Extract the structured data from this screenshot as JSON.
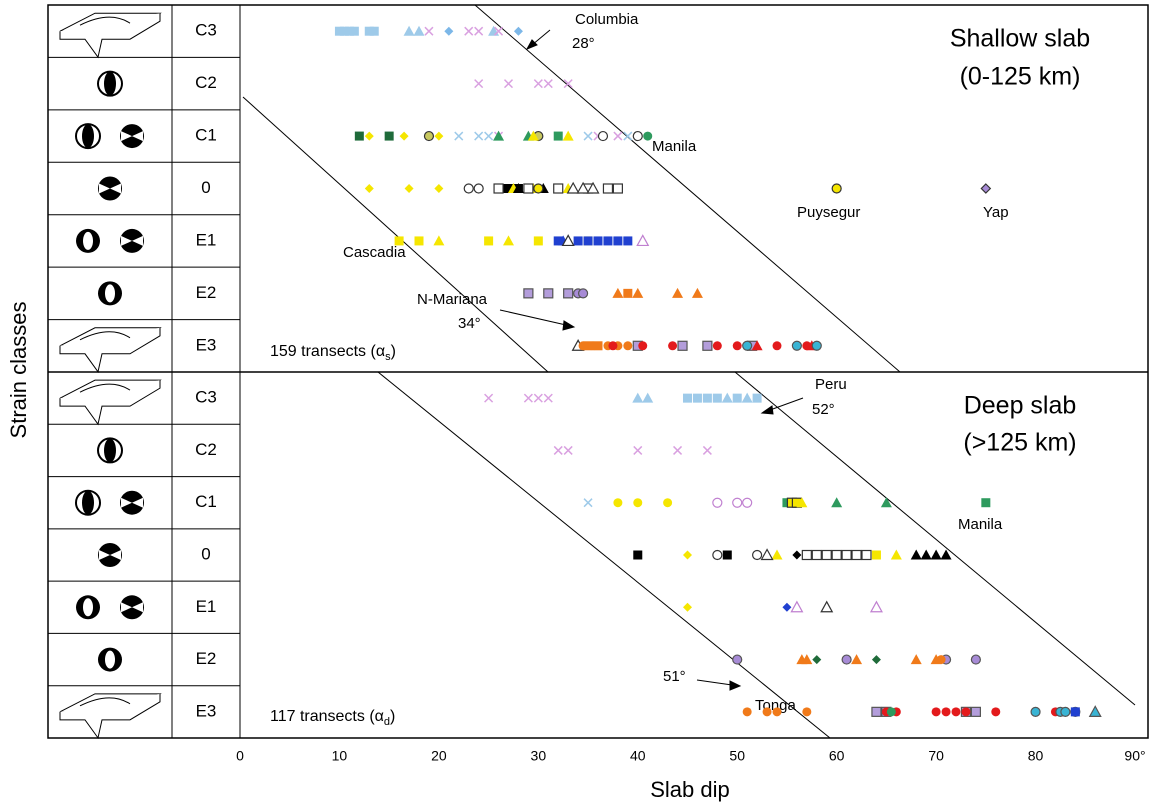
{
  "chart_data": {
    "type": "scatter",
    "xlabel": "Slab dip",
    "ylabel": "Strain classes",
    "xlim": [
      0,
      90
    ],
    "xticks": [
      0,
      10,
      20,
      30,
      40,
      50,
      60,
      70,
      80,
      {
        "value": 90,
        "label": "90°"
      }
    ],
    "panels": [
      {
        "title": [
          "Shallow slab",
          "(0-125 km)"
        ],
        "count": [
          "159 transects (α",
          "s",
          ")"
        ],
        "notes": [
          "Columbia",
          "28°",
          "Manila",
          "Puysegur",
          "Yap",
          "Cascadia",
          "N-Mariana",
          "34°"
        ],
        "rows": [
          {
            "label": "C3",
            "groups": [
              {
                "color": "#9ecae9",
                "shape": "sq",
                "x": [
                  10,
                  10.5,
                  11,
                  11.5,
                  13,
                  13.5
                ]
              },
              {
                "color": "#9ecae9",
                "shape": "tri",
                "x": [
                  17,
                  18,
                  25.5
                ]
              },
              {
                "color": "#d9a0e0",
                "shape": "x",
                "x": [
                  19,
                  23,
                  24,
                  26
                ]
              },
              {
                "color": "#7cb7e8",
                "shape": "dia",
                "x": [
                  21,
                  28
                ]
              }
            ]
          },
          {
            "label": "C2",
            "groups": [
              {
                "color": "#d9a0e0",
                "shape": "x",
                "x": [
                  24,
                  27,
                  30,
                  31,
                  33
                ]
              }
            ]
          },
          {
            "label": "C1",
            "groups": [
              {
                "color": "#1f6b3a",
                "shape": "sq",
                "x": [
                  12,
                  15
                ]
              },
              {
                "color": "#f5e600",
                "shape": "dia",
                "x": [
                  13,
                  16.5,
                  20
                ]
              },
              {
                "color": "#c8c860",
                "shape": "circ",
                "edge": "#333",
                "x": [
                  19,
                  30
                ]
              },
              {
                "color": "#9ecae9",
                "shape": "x",
                "x": [
                  22,
                  24,
                  25,
                  35,
                  39
                ]
              },
              {
                "color": "#d9a0e0",
                "shape": "x",
                "x": [
                  26,
                  36,
                  38
                ]
              },
              {
                "color": "#2e9a5e",
                "shape": "tri",
                "x": [
                  26,
                  29
                ]
              },
              {
                "color": "#f5e600",
                "shape": "tri",
                "x": [
                  29.5,
                  33
                ]
              },
              {
                "color": "#2e9a5e",
                "shape": "sq",
                "x": [
                  32
                ]
              },
              {
                "color": "#fff",
                "shape": "circ",
                "edge": "#333",
                "x": [
                  36.5,
                  40
                ]
              },
              {
                "color": "#2e9a5e",
                "shape": "circ",
                "x": [
                  41
                ]
              }
            ]
          },
          {
            "label": "0",
            "groups": [
              {
                "color": "#f5e600",
                "shape": "dia",
                "x": [
                  13,
                  17,
                  20
                ]
              },
              {
                "color": "#fff",
                "shape": "circ",
                "edge": "#333",
                "x": [
                  23,
                  24
                ]
              },
              {
                "color": "#000",
                "shape": "sq",
                "x": [
                  26.5,
                  27,
                  28
                ]
              },
              {
                "color": "#f5e600",
                "shape": "tri",
                "x": [
                  27.5,
                  29.5,
                  33
                ]
              },
              {
                "color": "#fff",
                "shape": "sq",
                "edge": "#333",
                "x": [
                  26,
                  29,
                  32,
                  35,
                  37,
                  38
                ]
              },
              {
                "color": "#000",
                "shape": "tri",
                "x": [
                  28,
                  30.5
                ]
              },
              {
                "color": "#fff",
                "shape": "tri",
                "edge": "#333",
                "x": [
                  33.5,
                  34.5,
                  35.5
                ]
              },
              {
                "color": "#f5e600",
                "shape": "circ",
                "edge": "#333",
                "x": [
                  30,
                  60
                ]
              },
              {
                "color": "#a78bd6",
                "shape": "dia",
                "edge": "#333",
                "x": [
                  75
                ]
              }
            ]
          },
          {
            "label": "E1",
            "groups": [
              {
                "color": "#f5e600",
                "shape": "sq",
                "x": [
                  16,
                  18,
                  25,
                  30,
                  35
                ]
              },
              {
                "color": "#f5e600",
                "shape": "tri",
                "x": [
                  20,
                  27
                ]
              },
              {
                "color": "#2040d0",
                "shape": "sq",
                "x": [
                  32,
                  34,
                  35,
                  36,
                  37,
                  38,
                  39
                ]
              },
              {
                "color": "#2040d0",
                "shape": "tri",
                "x": [
                  32.5
                ]
              },
              {
                "color": "#fff",
                "shape": "tri",
                "edge": "#333",
                "x": [
                  33
                ]
              },
              {
                "color": "#fff",
                "shape": "tri",
                "edge": "#c080d0",
                "x": [
                  40.5
                ]
              }
            ]
          },
          {
            "label": "E2",
            "groups": [
              {
                "color": "#b39ddb",
                "shape": "sq",
                "edge": "#555",
                "x": [
                  29,
                  31,
                  33
                ]
              },
              {
                "color": "#a78bd6",
                "shape": "circ",
                "edge": "#555",
                "x": [
                  34,
                  34.5
                ]
              },
              {
                "color": "#f07a1a",
                "shape": "tri",
                "x": [
                  38,
                  40,
                  44,
                  46
                ]
              },
              {
                "color": "#f07a1a",
                "shape": "sq",
                "x": [
                  39
                ]
              }
            ]
          },
          {
            "label": "E3",
            "groups": [
              {
                "color": "#fff",
                "shape": "tri",
                "edge": "#333",
                "x": [
                  34
                ]
              },
              {
                "color": "#f07a1a",
                "shape": "circ",
                "x": [
                  34.5,
                  35.5,
                  37,
                  38,
                  39
                ]
              },
              {
                "color": "#f07a1a",
                "shape": "sq",
                "x": [
                  35,
                  36
                ]
              },
              {
                "color": "#b39ddb",
                "shape": "sq",
                "edge": "#555",
                "x": [
                  40,
                  44.5,
                  47,
                  51.5
                ]
              },
              {
                "color": "#e31a1c",
                "shape": "circ",
                "x": [
                  37.5,
                  40.5,
                  43.5,
                  48,
                  50,
                  54,
                  57
                ]
              },
              {
                "color": "#e31a1c",
                "shape": "tri",
                "x": [
                  52,
                  57.5
                ]
              },
              {
                "color": "#39b4d4",
                "shape": "circ",
                "edge": "#555",
                "x": [
                  51,
                  56,
                  58
                ]
              }
            ]
          }
        ]
      },
      {
        "title": [
          "Deep slab",
          "(>125 km)"
        ],
        "count": [
          "117 transects (α",
          "d",
          ")"
        ],
        "notes": [
          "Peru",
          "52°",
          "Manila",
          "51°",
          "Tonga"
        ],
        "rows": [
          {
            "label": "C3",
            "groups": [
              {
                "color": "#d9a0e0",
                "shape": "x",
                "x": [
                  25,
                  29,
                  30,
                  31
                ]
              },
              {
                "color": "#9ecae9",
                "shape": "tri",
                "x": [
                  40,
                  41,
                  49,
                  51
                ]
              },
              {
                "color": "#9ecae9",
                "shape": "sq",
                "x": [
                  45,
                  46,
                  47,
                  48,
                  50,
                  52
                ]
              }
            ]
          },
          {
            "label": "C2",
            "groups": [
              {
                "color": "#d9a0e0",
                "shape": "x",
                "x": [
                  32,
                  33,
                  40,
                  44,
                  47
                ]
              }
            ]
          },
          {
            "label": "C1",
            "groups": [
              {
                "color": "#9ecae9",
                "shape": "x",
                "x": [
                  35
                ]
              },
              {
                "color": "#f5e600",
                "shape": "circ",
                "x": [
                  38,
                  40,
                  43
                ]
              },
              {
                "color": "#fff",
                "shape": "circ",
                "edge": "#c080d0",
                "x": [
                  48,
                  50,
                  51
                ]
              },
              {
                "color": "#2e9a5e",
                "shape": "sq",
                "x": [
                  55,
                  75
                ]
              },
              {
                "color": "#f5e600",
                "shape": "sq",
                "edge": "#333",
                "x": [
                  55.5,
                  56
                ]
              },
              {
                "color": "#f5e600",
                "shape": "tri",
                "x": [
                  56.5
                ]
              },
              {
                "color": "#2e9a5e",
                "shape": "tri",
                "x": [
                  60,
                  65
                ]
              }
            ]
          },
          {
            "label": "0",
            "groups": [
              {
                "color": "#000",
                "shape": "sq",
                "x": [
                  40,
                  49,
                  61.5,
                  62.5
                ]
              },
              {
                "color": "#f5e600",
                "shape": "dia",
                "x": [
                  45
                ]
              },
              {
                "color": "#fff",
                "shape": "circ",
                "edge": "#333",
                "x": [
                  48,
                  52
                ]
              },
              {
                "color": "#f5e600",
                "shape": "tri",
                "x": [
                  54,
                  66
                ]
              },
              {
                "color": "#fff",
                "shape": "tri",
                "edge": "#333",
                "x": [
                  53
                ]
              },
              {
                "color": "#000",
                "shape": "dia",
                "x": [
                  56
                ]
              },
              {
                "color": "#fff",
                "shape": "sq",
                "edge": "#333",
                "x": [
                  57,
                  58,
                  59,
                  60,
                  61,
                  62,
                  63
                ]
              },
              {
                "color": "#000",
                "shape": "tri",
                "x": [
                  68,
                  69,
                  70,
                  71
                ]
              },
              {
                "color": "#f5e600",
                "shape": "sq",
                "x": [
                  64
                ]
              }
            ]
          },
          {
            "label": "E1",
            "groups": [
              {
                "color": "#f5e600",
                "shape": "dia",
                "x": [
                  45
                ]
              },
              {
                "color": "#2040d0",
                "shape": "dia",
                "x": [
                  55
                ]
              },
              {
                "color": "#fff",
                "shape": "tri",
                "edge": "#c080d0",
                "x": [
                  56,
                  64
                ]
              },
              {
                "color": "#fff",
                "shape": "tri",
                "edge": "#333",
                "x": [
                  59
                ]
              }
            ]
          },
          {
            "label": "E2",
            "groups": [
              {
                "color": "#a78bd6",
                "shape": "circ",
                "edge": "#555",
                "x": [
                  50,
                  61,
                  71,
                  74
                ]
              },
              {
                "color": "#f07a1a",
                "shape": "tri",
                "x": [
                  56.5,
                  57,
                  62,
                  68,
                  70
                ]
              },
              {
                "color": "#1f6b3a",
                "shape": "dia",
                "x": [
                  58,
                  64
                ]
              },
              {
                "color": "#f07a1a",
                "shape": "circ",
                "x": [
                  70.5
                ]
              }
            ]
          },
          {
            "label": "E3",
            "groups": [
              {
                "color": "#f07a1a",
                "shape": "circ",
                "x": [
                  51,
                  53,
                  54,
                  57
                ]
              },
              {
                "color": "#b39ddb",
                "shape": "sq",
                "edge": "#555",
                "x": [
                  64,
                  65,
                  73,
                  74
                ]
              },
              {
                "color": "#e31a1c",
                "shape": "circ",
                "x": [
                  65,
                  66,
                  70,
                  71,
                  72,
                  73,
                  76,
                  82
                ]
              },
              {
                "color": "#2e9a5e",
                "shape": "circ",
                "x": [
                  65.5
                ]
              },
              {
                "color": "#39b4d4",
                "shape": "circ",
                "edge": "#555",
                "x": [
                  80,
                  82.5,
                  83,
                  84
                ]
              },
              {
                "color": "#2040d0",
                "shape": "sq",
                "x": [
                  84
                ]
              },
              {
                "color": "#39b4d4",
                "shape": "tri",
                "edge": "#555",
                "x": [
                  86
                ]
              }
            ]
          }
        ]
      }
    ]
  }
}
